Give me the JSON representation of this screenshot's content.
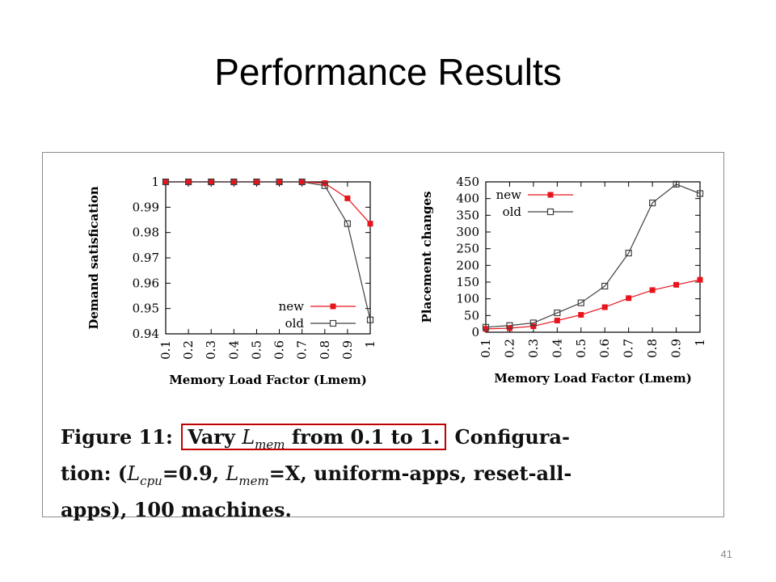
{
  "slide": {
    "title": "Performance Results",
    "number": "41"
  },
  "caption": {
    "prefix": "Figure 11:",
    "highlight_pre": "Vary",
    "highlight_math": "L",
    "highlight_math_sub": "mem",
    "highlight_post": "from 0.1 to 1.",
    "line1_rest": "Configura-",
    "line2_a": "tion: (",
    "line2_math1": "L",
    "line2_math1_sub": "cpu",
    "line2_b": "=0.9, ",
    "line2_math2": "L",
    "line2_math2_sub": "mem",
    "line2_c": "=X, uniform-apps, reset-all-",
    "line3": "apps), 100 machines.",
    "highlight_color": "#c00000"
  },
  "chart_data": [
    {
      "type": "line",
      "xlabel": "Memory Load Factor (Lmem)",
      "ylabel": "Demand satisfication",
      "x": [
        0.1,
        0.2,
        0.3,
        0.4,
        0.5,
        0.6,
        0.7,
        0.8,
        0.9,
        1
      ],
      "x_tick_labels": [
        "0.1",
        "0.2",
        "0.3",
        "0.4",
        "0.5",
        "0.6",
        "0.7",
        "0.8",
        "0.9",
        "1"
      ],
      "ylim": [
        0.94,
        1.0
      ],
      "y_ticks": [
        0.94,
        0.95,
        0.96,
        0.97,
        0.98,
        0.99,
        1
      ],
      "y_tick_labels": [
        "0.94",
        "0.95",
        "0.96",
        "0.97",
        "0.98",
        "0.99",
        "1"
      ],
      "legend_position": "bottom-right",
      "grid": false,
      "series": [
        {
          "name": "new",
          "color": "#e8141c",
          "marker": "filled-square",
          "values": [
            1,
            1,
            1,
            1,
            1,
            1,
            1,
            0.9995,
            0.9935,
            0.9835
          ]
        },
        {
          "name": "old",
          "color": "#404040",
          "marker": "open-square",
          "values": [
            1,
            1,
            1,
            1,
            1,
            1,
            1,
            0.9985,
            0.9835,
            0.9455
          ]
        }
      ]
    },
    {
      "type": "line",
      "xlabel": "Memory Load Factor (Lmem)",
      "ylabel": "Placement changes",
      "x": [
        0.1,
        0.2,
        0.3,
        0.4,
        0.5,
        0.6,
        0.7,
        0.8,
        0.9,
        1
      ],
      "x_tick_labels": [
        "0.1",
        "0.2",
        "0.3",
        "0.4",
        "0.5",
        "0.6",
        "0.7",
        "0.8",
        "0.9",
        "1"
      ],
      "ylim": [
        0,
        450
      ],
      "y_ticks": [
        0,
        50,
        100,
        150,
        200,
        250,
        300,
        350,
        400,
        450
      ],
      "y_tick_labels": [
        "0",
        "50",
        "100",
        "150",
        "200",
        "250",
        "300",
        "350",
        "400",
        "450"
      ],
      "legend_position": "top-left",
      "grid": false,
      "series": [
        {
          "name": "new",
          "color": "#e8141c",
          "marker": "filled-square",
          "values": [
            10,
            12,
            18,
            35,
            52,
            75,
            102,
            126,
            142,
            157
          ]
        },
        {
          "name": "old",
          "color": "#404040",
          "marker": "open-square",
          "values": [
            15,
            20,
            28,
            58,
            88,
            138,
            237,
            387,
            443,
            415
          ]
        }
      ]
    }
  ]
}
